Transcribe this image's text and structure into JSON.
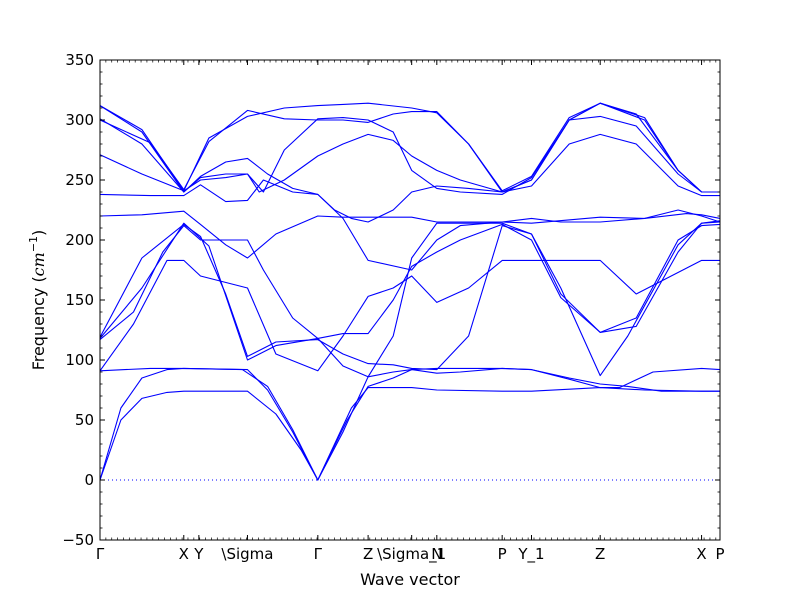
{
  "chart_data": {
    "type": "line",
    "xlabel": "Wave vector",
    "ylabel": "Frequency (",
    "ylabel_unit": "cm",
    "ylabel_exp": "−1",
    "ylabel_close": ")",
    "ylim": [
      -50,
      350
    ],
    "yticks": [
      -50,
      0,
      50,
      100,
      150,
      200,
      250,
      300,
      350
    ],
    "grid": false,
    "xlim": [
      0,
      7.4
    ],
    "xticks": [
      {
        "label": "Γ",
        "x": 0.0
      },
      {
        "label": "X",
        "x": 1.0
      },
      {
        "label": "Y",
        "x": 1.18
      },
      {
        "label": "\\Sigma",
        "x": 1.76
      },
      {
        "label": "Γ",
        "x": 2.6
      },
      {
        "label": "Z",
        "x": 3.2
      },
      {
        "label": "\\Sigma_1",
        "x": 3.72
      },
      {
        "label": "N",
        "x": 4.02
      },
      {
        "label": "P",
        "x": 4.8
      },
      {
        "label": "Y_1",
        "x": 5.15
      },
      {
        "label": "Z",
        "x": 5.97
      },
      {
        "label": "X",
        "x": 7.18
      },
      {
        "label": "P",
        "x": 7.4
      }
    ],
    "zero_line": {
      "y": 0,
      "style": "dotted"
    },
    "line_color": "#0000ff",
    "series": [
      {
        "points": [
          [
            0,
            0
          ],
          [
            0.25,
            60
          ],
          [
            0.5,
            85
          ],
          [
            0.8,
            92
          ],
          [
            1.0,
            93
          ],
          [
            1.76,
            92
          ],
          [
            2.0,
            75
          ],
          [
            2.3,
            40
          ],
          [
            2.6,
            0
          ],
          [
            3.0,
            60
          ],
          [
            3.2,
            77
          ],
          [
            3.72,
            77
          ],
          [
            4.02,
            75
          ],
          [
            4.8,
            74
          ],
          [
            5.15,
            74
          ],
          [
            5.97,
            77
          ],
          [
            6.5,
            75
          ],
          [
            7.18,
            74
          ],
          [
            7.4,
            74
          ]
        ]
      },
      {
        "points": [
          [
            0,
            0
          ],
          [
            0.25,
            50
          ],
          [
            0.5,
            68
          ],
          [
            0.8,
            73
          ],
          [
            1.0,
            74
          ],
          [
            1.76,
            74
          ],
          [
            2.1,
            55
          ],
          [
            2.4,
            25
          ],
          [
            2.6,
            0
          ],
          [
            2.95,
            50
          ],
          [
            3.2,
            78
          ],
          [
            3.5,
            85
          ],
          [
            3.72,
            92
          ],
          [
            4.02,
            93
          ],
          [
            4.8,
            93
          ],
          [
            5.15,
            92
          ],
          [
            5.6,
            84
          ],
          [
            5.97,
            77
          ],
          [
            6.2,
            77
          ],
          [
            6.6,
            90
          ],
          [
            7.18,
            93
          ],
          [
            7.4,
            92
          ]
        ]
      },
      {
        "points": [
          [
            0,
            91
          ],
          [
            0.3,
            92
          ],
          [
            0.6,
            93
          ],
          [
            1.0,
            93
          ],
          [
            1.7,
            92
          ],
          [
            2.0,
            78
          ],
          [
            2.3,
            42
          ],
          [
            2.6,
            0
          ],
          [
            2.9,
            40
          ],
          [
            3.2,
            86
          ],
          [
            3.5,
            90
          ],
          [
            3.72,
            92
          ],
          [
            4.02,
            89
          ],
          [
            4.3,
            90
          ],
          [
            4.8,
            93
          ],
          [
            5.15,
            92
          ],
          [
            5.6,
            85
          ],
          [
            5.97,
            80
          ],
          [
            6.3,
            78
          ],
          [
            6.7,
            74
          ],
          [
            7.18,
            74
          ],
          [
            7.4,
            74
          ]
        ]
      },
      {
        "points": [
          [
            0,
            117
          ],
          [
            0.4,
            140
          ],
          [
            0.75,
            190
          ],
          [
            1.0,
            212
          ],
          [
            1.2,
            200
          ],
          [
            1.76,
            200
          ],
          [
            1.95,
            175
          ],
          [
            2.3,
            135
          ],
          [
            2.6,
            118
          ],
          [
            2.9,
            122
          ],
          [
            3.2,
            122
          ],
          [
            3.5,
            150
          ],
          [
            3.72,
            178
          ],
          [
            4.02,
            190
          ],
          [
            4.3,
            200
          ],
          [
            4.8,
            213
          ],
          [
            5.15,
            200
          ],
          [
            5.5,
            152
          ],
          [
            5.97,
            123
          ],
          [
            6.4,
            135
          ],
          [
            6.9,
            200
          ],
          [
            7.18,
            212
          ],
          [
            7.4,
            213
          ]
        ]
      },
      {
        "points": [
          [
            0,
            118
          ],
          [
            0.5,
            160
          ],
          [
            1.0,
            214
          ],
          [
            1.3,
            195
          ],
          [
            1.76,
            100
          ],
          [
            2.1,
            112
          ],
          [
            2.6,
            118
          ],
          [
            2.9,
            95
          ],
          [
            3.2,
            86
          ],
          [
            3.5,
            120
          ],
          [
            3.72,
            185
          ],
          [
            4.02,
            214
          ],
          [
            4.8,
            214
          ],
          [
            5.15,
            205
          ],
          [
            5.5,
            155
          ],
          [
            5.97,
            123
          ],
          [
            6.4,
            128
          ],
          [
            6.9,
            190
          ],
          [
            7.18,
            214
          ],
          [
            7.4,
            215
          ]
        ]
      },
      {
        "points": [
          [
            0,
            119
          ],
          [
            0.5,
            185
          ],
          [
            1.0,
            213
          ],
          [
            1.2,
            203
          ],
          [
            1.5,
            155
          ],
          [
            1.76,
            103
          ],
          [
            2.1,
            115
          ],
          [
            2.6,
            117
          ],
          [
            2.9,
            105
          ],
          [
            3.2,
            97
          ],
          [
            3.5,
            96
          ],
          [
            3.72,
            93
          ],
          [
            4.02,
            92
          ],
          [
            4.4,
            120
          ],
          [
            4.8,
            212
          ],
          [
            5.15,
            205
          ],
          [
            5.5,
            160
          ],
          [
            5.97,
            87
          ],
          [
            6.3,
            120
          ],
          [
            6.9,
            196
          ],
          [
            7.18,
            214
          ],
          [
            7.4,
            216
          ]
        ]
      },
      {
        "points": [
          [
            0,
            91
          ],
          [
            0.4,
            130
          ],
          [
            0.8,
            183
          ],
          [
            1.0,
            183
          ],
          [
            1.2,
            170
          ],
          [
            1.76,
            160
          ],
          [
            2.1,
            105
          ],
          [
            2.6,
            91
          ],
          [
            2.9,
            120
          ],
          [
            3.2,
            153
          ],
          [
            3.5,
            160
          ],
          [
            3.72,
            170
          ],
          [
            4.02,
            148
          ],
          [
            4.4,
            160
          ],
          [
            4.8,
            183
          ],
          [
            5.15,
            183
          ],
          [
            5.97,
            183
          ],
          [
            6.4,
            155
          ],
          [
            7.18,
            183
          ],
          [
            7.4,
            183
          ]
        ]
      },
      {
        "points": [
          [
            0,
            220
          ],
          [
            0.5,
            221
          ],
          [
            1.0,
            224
          ],
          [
            1.2,
            213
          ],
          [
            1.5,
            196
          ],
          [
            1.76,
            185
          ],
          [
            2.1,
            205
          ],
          [
            2.6,
            220
          ],
          [
            2.9,
            219
          ],
          [
            3.2,
            219
          ],
          [
            3.72,
            219
          ],
          [
            4.02,
            215
          ],
          [
            4.8,
            215
          ],
          [
            5.15,
            214
          ],
          [
            5.97,
            219
          ],
          [
            6.5,
            218
          ],
          [
            7.0,
            222
          ],
          [
            7.18,
            221
          ],
          [
            7.4,
            218
          ]
        ]
      },
      {
        "points": [
          [
            0,
            238
          ],
          [
            0.6,
            237
          ],
          [
            1.0,
            237
          ],
          [
            1.2,
            246
          ],
          [
            1.5,
            232
          ],
          [
            1.76,
            233
          ],
          [
            1.95,
            250
          ],
          [
            2.3,
            240
          ],
          [
            2.6,
            238
          ],
          [
            2.9,
            218
          ],
          [
            3.2,
            183
          ],
          [
            3.72,
            175
          ],
          [
            4.02,
            200
          ],
          [
            4.3,
            212
          ],
          [
            4.8,
            215
          ],
          [
            5.15,
            218
          ],
          [
            5.5,
            215
          ],
          [
            5.97,
            215
          ],
          [
            6.5,
            218
          ],
          [
            6.9,
            225
          ],
          [
            7.18,
            220
          ],
          [
            7.4,
            215
          ]
        ]
      },
      {
        "points": [
          [
            0,
            271
          ],
          [
            0.5,
            255
          ],
          [
            1.0,
            241
          ],
          [
            1.2,
            250
          ],
          [
            1.5,
            252
          ],
          [
            1.76,
            255
          ],
          [
            1.9,
            240
          ],
          [
            2.2,
            250
          ],
          [
            2.6,
            270
          ],
          [
            2.9,
            280
          ],
          [
            3.2,
            288
          ],
          [
            3.5,
            283
          ],
          [
            3.72,
            270
          ],
          [
            4.02,
            258
          ],
          [
            4.3,
            250
          ],
          [
            4.8,
            240
          ],
          [
            5.15,
            245
          ],
          [
            5.6,
            280
          ],
          [
            5.97,
            288
          ],
          [
            6.4,
            280
          ],
          [
            6.9,
            245
          ],
          [
            7.18,
            237
          ],
          [
            7.4,
            237
          ]
        ]
      },
      {
        "points": [
          [
            0,
            301
          ],
          [
            0.5,
            280
          ],
          [
            1.0,
            240
          ],
          [
            1.2,
            252
          ],
          [
            1.5,
            255
          ],
          [
            1.76,
            255
          ],
          [
            1.95,
            240
          ],
          [
            2.2,
            275
          ],
          [
            2.6,
            301
          ],
          [
            2.9,
            302
          ],
          [
            3.2,
            300
          ],
          [
            3.5,
            290
          ],
          [
            3.72,
            258
          ],
          [
            4.02,
            243
          ],
          [
            4.3,
            240
          ],
          [
            4.8,
            238
          ],
          [
            5.15,
            252
          ],
          [
            5.6,
            300
          ],
          [
            5.97,
            303
          ],
          [
            6.4,
            295
          ],
          [
            6.9,
            255
          ],
          [
            7.18,
            240
          ],
          [
            7.4,
            240
          ]
        ]
      },
      {
        "points": [
          [
            0,
            312
          ],
          [
            0.5,
            290
          ],
          [
            1.0,
            240
          ],
          [
            1.2,
            253
          ],
          [
            1.5,
            265
          ],
          [
            1.76,
            268
          ],
          [
            2.0,
            255
          ],
          [
            2.3,
            243
          ],
          [
            2.6,
            238
          ],
          [
            2.8,
            225
          ],
          [
            3.0,
            218
          ],
          [
            3.2,
            215
          ],
          [
            3.5,
            225
          ],
          [
            3.72,
            240
          ],
          [
            4.02,
            245
          ],
          [
            4.4,
            243
          ],
          [
            4.8,
            240
          ],
          [
            5.15,
            250
          ],
          [
            5.6,
            300
          ],
          [
            5.97,
            314
          ],
          [
            6.4,
            305
          ],
          [
            6.9,
            258
          ],
          [
            7.18,
            240
          ],
          [
            7.4,
            240
          ]
        ]
      },
      {
        "points": [
          [
            0,
            300
          ],
          [
            0.6,
            281
          ],
          [
            1.0,
            242
          ],
          [
            1.3,
            282
          ],
          [
            1.76,
            308
          ],
          [
            2.2,
            301
          ],
          [
            2.6,
            300
          ],
          [
            2.9,
            300
          ],
          [
            3.2,
            298
          ],
          [
            3.5,
            305
          ],
          [
            3.72,
            307
          ],
          [
            4.02,
            307
          ],
          [
            4.4,
            280
          ],
          [
            4.8,
            241
          ],
          [
            5.15,
            253
          ],
          [
            5.6,
            302
          ],
          [
            5.97,
            314
          ],
          [
            6.5,
            302
          ],
          [
            6.9,
            258
          ],
          [
            7.18,
            240
          ],
          [
            7.4,
            240
          ]
        ]
      },
      {
        "points": [
          [
            0,
            312
          ],
          [
            0.5,
            292
          ],
          [
            1.0,
            241
          ],
          [
            1.3,
            285
          ],
          [
            1.76,
            303
          ],
          [
            2.2,
            310
          ],
          [
            2.6,
            312
          ],
          [
            2.9,
            313
          ],
          [
            3.2,
            314
          ],
          [
            3.72,
            310
          ],
          [
            4.02,
            306
          ],
          [
            4.4,
            280
          ],
          [
            4.8,
            240
          ],
          [
            5.15,
            250
          ],
          [
            5.6,
            300
          ],
          [
            5.97,
            314
          ],
          [
            6.5,
            300
          ],
          [
            6.9,
            258
          ],
          [
            7.18,
            240
          ],
          [
            7.4,
            240
          ]
        ]
      }
    ]
  }
}
